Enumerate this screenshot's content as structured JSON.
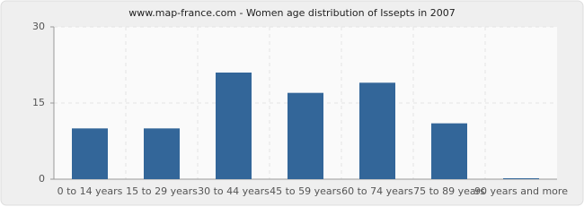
{
  "chart_data": {
    "type": "bar",
    "title": "www.map-france.com - Women age distribution of Issepts in 2007",
    "categories": [
      "0 to 14 years",
      "15 to 29 years",
      "30 to 44 years",
      "45 to 59 years",
      "60 to 74 years",
      "75 to 89 years",
      "90 years and more"
    ],
    "values": [
      10,
      10,
      21,
      17,
      19,
      11,
      0
    ],
    "color": "#336699",
    "ylim": [
      0,
      30
    ],
    "yticks": [
      0,
      15,
      30
    ],
    "grid": true
  }
}
